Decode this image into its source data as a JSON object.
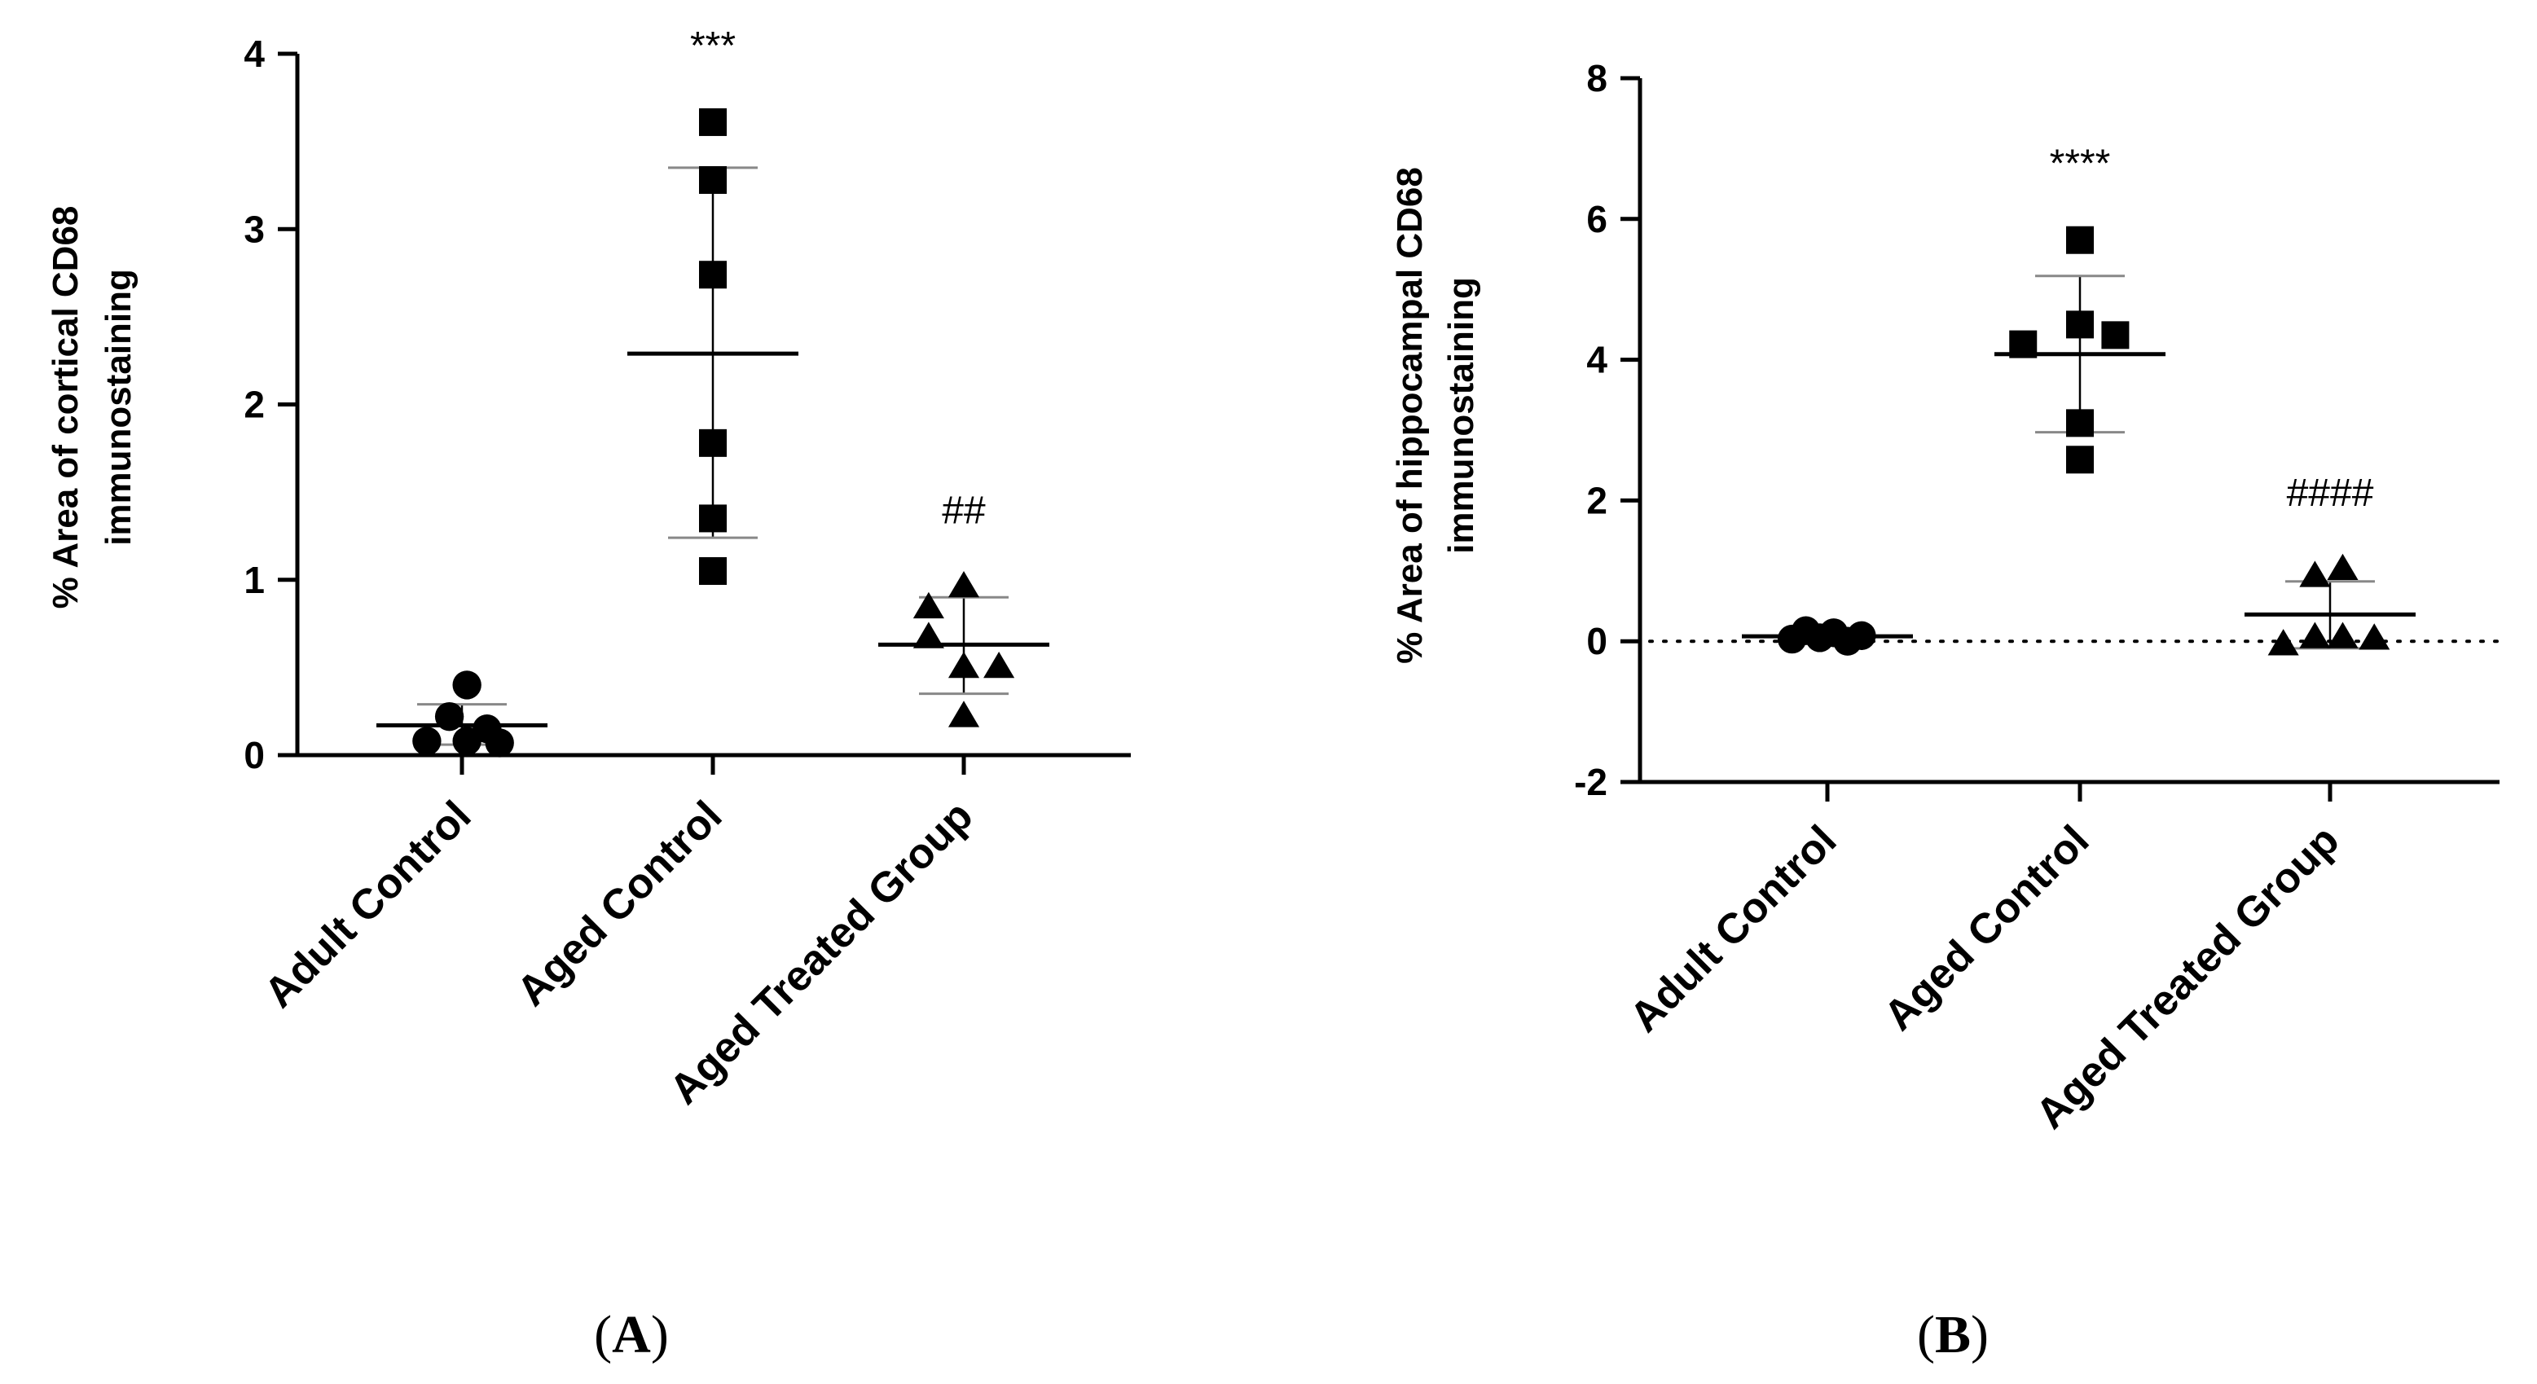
{
  "chart_data": [
    {
      "panel": "A",
      "panel_label_parts": [
        "(",
        "A",
        ")"
      ],
      "type": "scatter",
      "title": "",
      "ylabel": [
        "% Area of cortical CD68",
        "immunostaining"
      ],
      "xlabel": "",
      "ylim": [
        0,
        4
      ],
      "yticks": [
        0,
        1,
        2,
        3,
        4
      ],
      "ytick_labels": [
        "0",
        "1",
        "2",
        "3",
        "4"
      ],
      "zero_line": false,
      "categories": [
        "Adult Control",
        "Aged Control",
        "Aged Treated Group"
      ],
      "series": [
        {
          "name": "Adult Control",
          "marker": "circle",
          "values": [
            0.08,
            0.22,
            0.4,
            0.08,
            0.15,
            0.07
          ],
          "offsets": [
            -0.28,
            -0.1,
            0.04,
            0.04,
            0.2,
            0.3
          ],
          "mean": 0.17,
          "sd_low": 0.06,
          "sd_high": 0.29,
          "annotation": ""
        },
        {
          "name": "Aged Control",
          "marker": "square",
          "values": [
            3.61,
            3.28,
            2.74,
            1.78,
            1.35,
            1.05
          ],
          "offsets": [
            0,
            0,
            0,
            0,
            0,
            0
          ],
          "mean": 2.29,
          "sd_low": 1.24,
          "sd_high": 3.35,
          "annotation": "***"
        },
        {
          "name": "Aged Treated Group",
          "marker": "triangle",
          "values": [
            0.84,
            0.96,
            0.67,
            0.5,
            0.5,
            0.22
          ],
          "offsets": [
            -0.28,
            0.0,
            -0.28,
            0.0,
            0.28,
            0.0
          ],
          "mean": 0.63,
          "sd_low": 0.35,
          "sd_high": 0.9,
          "annotation": "##"
        }
      ]
    },
    {
      "panel": "B",
      "panel_label_parts": [
        "(",
        "B",
        ")"
      ],
      "type": "scatter",
      "title": "",
      "ylabel": [
        "% Area of hippocampal CD68",
        "immunostaining"
      ],
      "xlabel": "",
      "ylim": [
        -2,
        8
      ],
      "yticks": [
        -2,
        0,
        2,
        4,
        6,
        8
      ],
      "ytick_labels": [
        "-2",
        "0",
        "2",
        "4",
        "6",
        "8"
      ],
      "zero_line": true,
      "categories": [
        "Adult Control",
        "Aged Control",
        "Aged Treated Group"
      ],
      "series": [
        {
          "name": "Adult Control",
          "marker": "circle",
          "values": [
            0.03,
            0.15,
            0.05,
            0.12,
            0.0,
            0.08
          ],
          "offsets": [
            -0.28,
            -0.17,
            -0.06,
            0.05,
            0.16,
            0.27
          ],
          "mean": 0.07,
          "sd_low": 0.02,
          "sd_high": 0.12,
          "annotation": ""
        },
        {
          "name": "Aged Control",
          "marker": "square",
          "values": [
            5.7,
            4.5,
            4.22,
            4.35,
            3.1,
            2.58
          ],
          "offsets": [
            0,
            0,
            -0.45,
            0.28,
            0,
            0
          ],
          "mean": 4.08,
          "sd_low": 2.97,
          "sd_high": 5.19,
          "annotation": "****"
        },
        {
          "name": "Aged Treated Group",
          "marker": "triangle",
          "values": [
            0.92,
            1.02,
            -0.05,
            0.05,
            0.05,
            0.03
          ],
          "offsets": [
            -0.12,
            0.1,
            -0.37,
            -0.12,
            0.1,
            0.35
          ],
          "mean": 0.38,
          "sd_low": -0.1,
          "sd_high": 0.85,
          "annotation": "####"
        }
      ]
    }
  ]
}
